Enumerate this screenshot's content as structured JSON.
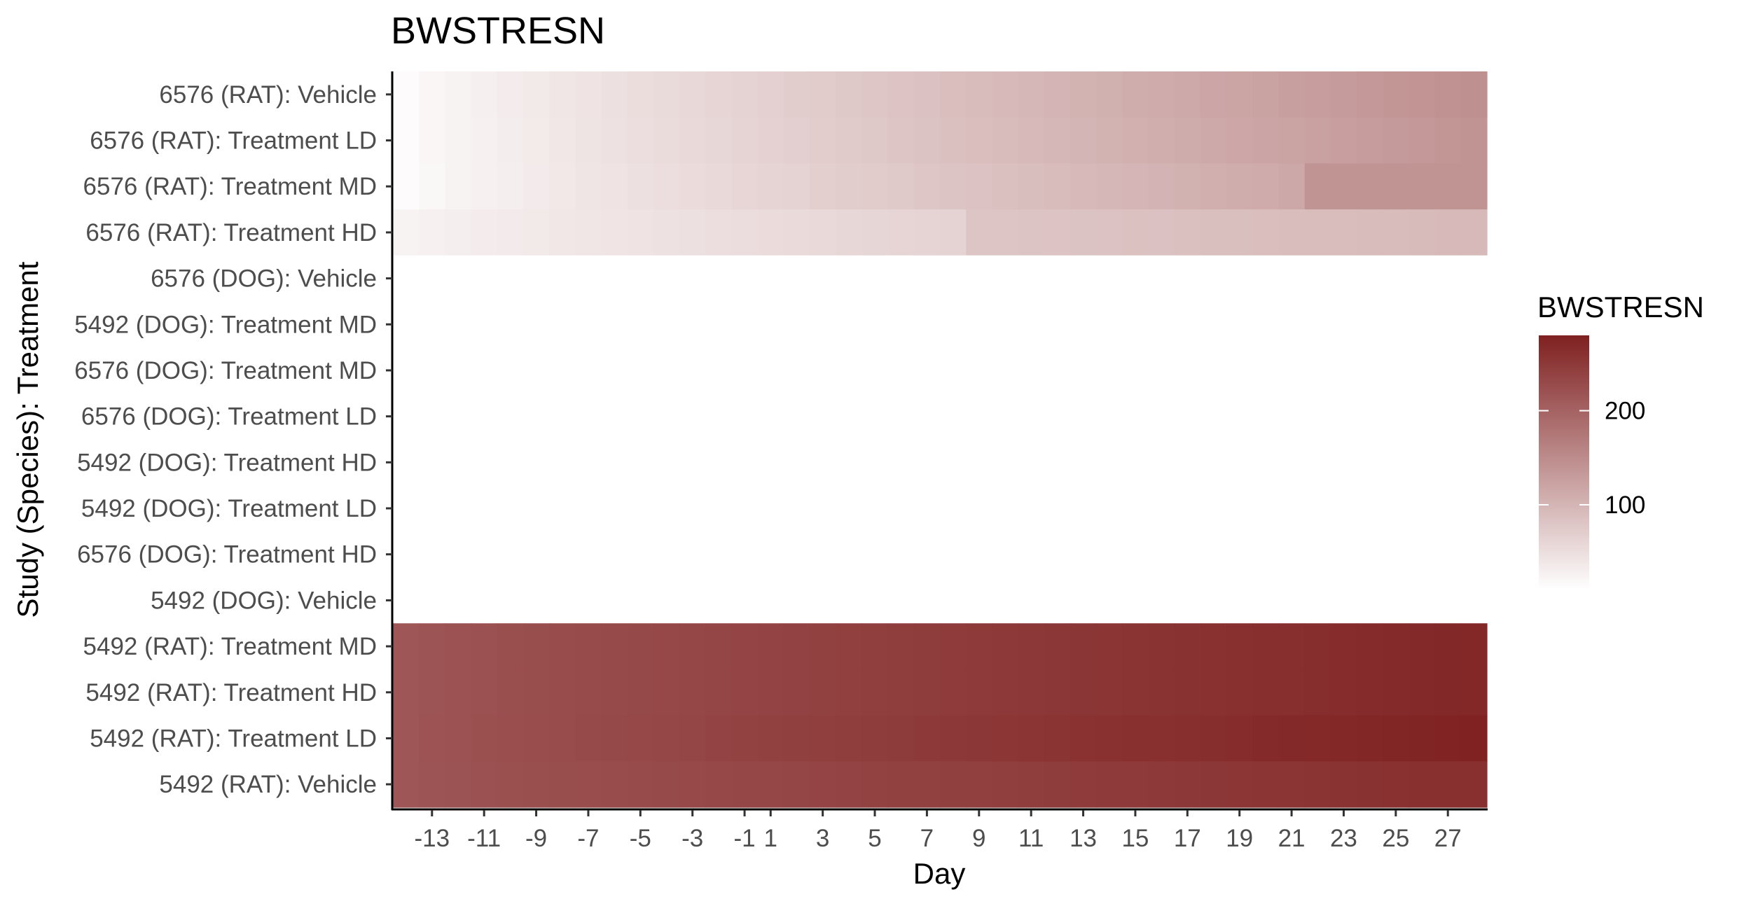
{
  "chart_data": {
    "type": "heatmap",
    "title": "BWSTRESN",
    "xlabel": "Day",
    "ylabel": "Study (Species): Treatment",
    "x": [
      -14,
      -13,
      -12,
      -11,
      -10,
      -9,
      -8,
      -7,
      -6,
      -5,
      -4,
      -3,
      -2,
      -1,
      1,
      2,
      3,
      4,
      5,
      6,
      7,
      8,
      9,
      10,
      11,
      12,
      13,
      14,
      15,
      16,
      17,
      18,
      19,
      20,
      21,
      22,
      23,
      24,
      25,
      26,
      27,
      28
    ],
    "x_tick_labels": [
      "-13",
      "-11",
      "-9",
      "-7",
      "-5",
      "-3",
      "-1",
      "1",
      "3",
      "5",
      "7",
      "9",
      "11",
      "13",
      "15",
      "17",
      "19",
      "21",
      "23",
      "25",
      "27"
    ],
    "x_tick_values": [
      -13,
      -11,
      -9,
      -7,
      -5,
      -3,
      -1,
      1,
      3,
      5,
      7,
      9,
      11,
      13,
      15,
      17,
      19,
      21,
      23,
      25,
      27
    ],
    "rows": [
      {
        "label": "6576 (RAT): Vehicle",
        "start": 15,
        "end": 145
      },
      {
        "label": "6576 (RAT): Treatment LD",
        "start": 15,
        "end": 140
      },
      {
        "label": "6576 (RAT): Treatment MD",
        "start": 15,
        "end": 132,
        "jump_day": 22,
        "jump_value": 140
      },
      {
        "label": "6576 (RAT): Treatment HD",
        "start": 25,
        "end": 95,
        "plateau_day": 9,
        "plateau_value": 80
      },
      {
        "label": "6576 (DOG): Vehicle",
        "start": 10,
        "end": 10
      },
      {
        "label": "5492 (DOG): Treatment MD",
        "start": 10,
        "end": 10
      },
      {
        "label": "6576 (DOG): Treatment MD",
        "start": 10,
        "end": 10
      },
      {
        "label": "6576 (DOG): Treatment LD",
        "start": 10,
        "end": 10
      },
      {
        "label": "5492 (DOG): Treatment HD",
        "start": 10,
        "end": 10
      },
      {
        "label": "5492 (DOG): Treatment LD",
        "start": 10,
        "end": 10
      },
      {
        "label": "6576 (DOG): Treatment HD",
        "start": 10,
        "end": 10
      },
      {
        "label": "5492 (DOG): Vehicle",
        "start": 10,
        "end": 10
      },
      {
        "label": "5492 (RAT): Treatment MD",
        "start": 215,
        "end": 272
      },
      {
        "label": "5492 (RAT): Treatment HD",
        "start": 215,
        "end": 272
      },
      {
        "label": "5492 (RAT): Treatment LD",
        "start": 215,
        "end": 278
      },
      {
        "label": "5492 (RAT): Vehicle",
        "start": 215,
        "end": 262
      }
    ],
    "color_scale": {
      "low": "#ffffff",
      "high": "#7f2020",
      "min": 10,
      "max": 280
    },
    "legend": {
      "title": "BWSTRESN",
      "ticks": [
        200,
        100
      ],
      "tick_labels": [
        "200",
        "100"
      ],
      "position": "right"
    },
    "grid": false
  }
}
